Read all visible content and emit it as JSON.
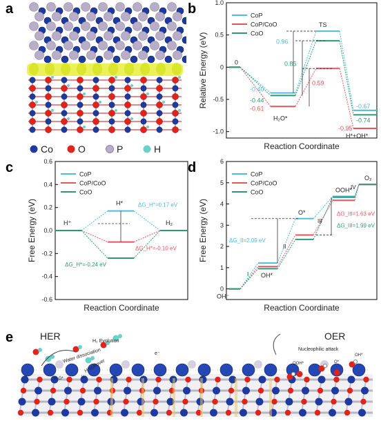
{
  "panel_letters": {
    "a": "a",
    "b": "b",
    "c": "c",
    "d": "d",
    "e": "e"
  },
  "panel_a": {
    "legend": [
      {
        "label": "Co",
        "color": "#1e3a9e"
      },
      {
        "label": "O",
        "color": "#e0241b"
      },
      {
        "label": "P",
        "color": "#b8aec8"
      },
      {
        "label": "H",
        "color": "#6ad0c8"
      }
    ]
  },
  "panel_e": {
    "left_title": "HER",
    "right_title": "OER",
    "annotations": {
      "h2_evolution": "H₂ Evolution",
      "water_dissociation": "Water dissociation",
      "h_spillover": "H spillover",
      "nucleophilic": "Nucleophilic attack",
      "h_plus": "H⁺",
      "h2o_star": "H₂O*",
      "ooh_star": "OOH*",
      "o_star": "O*",
      "oh_star": "OH*",
      "electron": "e⁻"
    }
  },
  "colors": {
    "CoP": "#4bbde0",
    "CoP/CoO": "#e8545a",
    "CoO": "#2a9a76"
  },
  "chart_data": [
    {
      "panel": "b",
      "type": "line",
      "xlabel": "Reaction Coordinate",
      "ylabel": "Relative Energy (eV)",
      "ylim": [
        -1.1,
        1.0
      ],
      "yticks": [
        "1.0",
        "0.5",
        "0",
        "-0.5",
        "-1.0"
      ],
      "states": [
        "0",
        "H₂O*",
        "TS",
        "H*+OH*"
      ],
      "series": [
        {
          "name": "CoP",
          "values": [
            0,
            -0.4,
            0.56,
            -0.67
          ]
        },
        {
          "name": "CoP/CoO",
          "values": [
            0,
            -0.61,
            -0.02,
            -0.95
          ]
        },
        {
          "name": "CoO",
          "values": [
            0,
            -0.44,
            0.41,
            -0.74
          ]
        }
      ],
      "barrier_labels": [
        "0.96",
        "0.85",
        "0.59"
      ],
      "value_labels": [
        {
          "series": "CoP",
          "text": "-0.40"
        },
        {
          "series": "CoO",
          "text": "-0.44"
        },
        {
          "series": "CoP/CoO",
          "text": "-0.61"
        },
        {
          "series": "CoP",
          "text": "-0.67"
        },
        {
          "series": "CoO",
          "text": "-0.74"
        },
        {
          "series": "CoP/CoO",
          "text": "-0.95"
        }
      ],
      "legend_position": "top-left"
    },
    {
      "panel": "c",
      "type": "line",
      "xlabel": "Reaction Coordinate",
      "ylabel": "Free Energy (eV)",
      "ylim": [
        -0.6,
        0.6
      ],
      "yticks": [
        "0.6",
        "0.4",
        "0.2",
        "0.0",
        "-0.2",
        "-0.4",
        "-0.6"
      ],
      "states": [
        "H⁺",
        "H*",
        "H₂"
      ],
      "series": [
        {
          "name": "CoP",
          "values": [
            0,
            0.17,
            0
          ]
        },
        {
          "name": "CoP/CoO",
          "values": [
            0,
            -0.1,
            0
          ]
        },
        {
          "name": "CoO",
          "values": [
            0,
            -0.24,
            0
          ]
        }
      ],
      "value_labels": [
        {
          "series": "CoP",
          "text": "ΔG_H*=0.17 eV"
        },
        {
          "series": "CoP/CoO",
          "text": "ΔG_H*=-0.10 eV"
        },
        {
          "series": "CoO",
          "text": "ΔG_H*=-0.24 eV"
        }
      ],
      "legend_position": "top-left"
    },
    {
      "panel": "d",
      "type": "line",
      "xlabel": "Reaction Coordinate",
      "ylabel": "Free Energy (eV)",
      "ylim": [
        -0.5,
        6.0
      ],
      "yticks": [
        "6",
        "5",
        "4",
        "3",
        "2",
        "1",
        "0"
      ],
      "states": [
        "OH⁻",
        "OH*",
        "O*",
        "OOH*",
        "O₂"
      ],
      "steps": [
        "I",
        "II",
        "III",
        "IV"
      ],
      "series": [
        {
          "name": "CoP",
          "values": [
            0,
            1.22,
            3.31,
            4.36,
            4.92
          ]
        },
        {
          "name": "CoP/CoO",
          "values": [
            0,
            1.05,
            2.54,
            4.17,
            4.92
          ]
        },
        {
          "name": "CoO",
          "values": [
            0,
            0.95,
            2.33,
            4.32,
            4.92
          ]
        }
      ],
      "value_labels": [
        {
          "series": "CoP",
          "text": "ΔG_II=2.09 eV"
        },
        {
          "series": "CoP/CoO",
          "text": "ΔG_III=1.63 eV"
        },
        {
          "series": "CoO",
          "text": "ΔG_III=1.99 eV"
        }
      ],
      "legend_position": "top-left"
    }
  ]
}
